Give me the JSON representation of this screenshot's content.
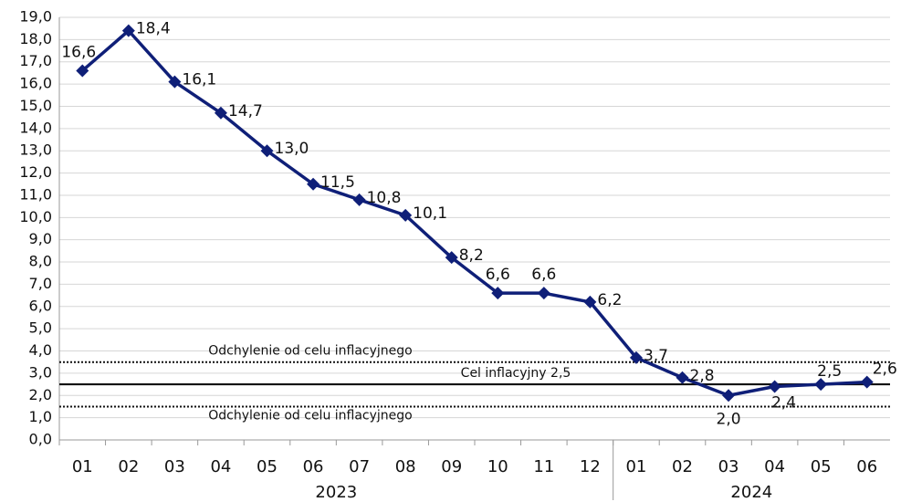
{
  "chart_data": {
    "type": "line",
    "categories": [
      "01",
      "02",
      "03",
      "04",
      "05",
      "06",
      "07",
      "08",
      "09",
      "10",
      "11",
      "12",
      "01",
      "02",
      "03",
      "04",
      "05",
      "06"
    ],
    "x_groups": [
      {
        "label": "2023",
        "count": 12
      },
      {
        "label": "2024",
        "count": 6
      }
    ],
    "series": [
      {
        "color": "#0f1f78",
        "values": [
          16.6,
          18.4,
          16.1,
          14.7,
          13.0,
          11.5,
          10.8,
          10.1,
          8.2,
          6.6,
          6.6,
          6.2,
          3.7,
          2.8,
          2.0,
          2.4,
          2.5,
          2.6
        ],
        "value_labels": [
          "16,6",
          "18,4",
          "16,1",
          "14,7",
          "13,0",
          "11,5",
          "10,8",
          "10,1",
          "8,2",
          "6,6",
          "6,6",
          "6,2",
          "3,7",
          "2,8",
          "2,0",
          "2,4",
          "2,5",
          "2,6"
        ]
      }
    ],
    "reference_lines": [
      {
        "value": 3.5,
        "label": "Odchylenie od celu inflacyjnego",
        "style": "dotted"
      },
      {
        "value": 2.5,
        "label": "Cel inflacyjny 2,5",
        "style": "solid"
      },
      {
        "value": 1.5,
        "label": "Odchylenie od celu inflacyjnego",
        "style": "dotted"
      }
    ],
    "ylim": [
      0,
      19
    ],
    "yticks": [
      {
        "value": 0,
        "label": "0,0"
      },
      {
        "value": 1,
        "label": "1,0"
      },
      {
        "value": 2,
        "label": "2,0"
      },
      {
        "value": 3,
        "label": "3,0"
      },
      {
        "value": 4,
        "label": "4,0"
      },
      {
        "value": 5,
        "label": "5,0"
      },
      {
        "value": 6,
        "label": "6,0"
      },
      {
        "value": 7,
        "label": "7,0"
      },
      {
        "value": 8,
        "label": "8,0"
      },
      {
        "value": 9,
        "label": "9,0"
      },
      {
        "value": 10,
        "label": "10,0"
      },
      {
        "value": 11,
        "label": "11,0"
      },
      {
        "value": 12,
        "label": "12,0"
      },
      {
        "value": 13,
        "label": "13,0"
      },
      {
        "value": 14,
        "label": "14,0"
      },
      {
        "value": 15,
        "label": "15,0"
      },
      {
        "value": 16,
        "label": "16,0"
      },
      {
        "value": 17,
        "label": "17,0"
      },
      {
        "value": 18,
        "label": "18,0"
      },
      {
        "value": 19,
        "label": "19,0"
      }
    ],
    "grid": true
  }
}
